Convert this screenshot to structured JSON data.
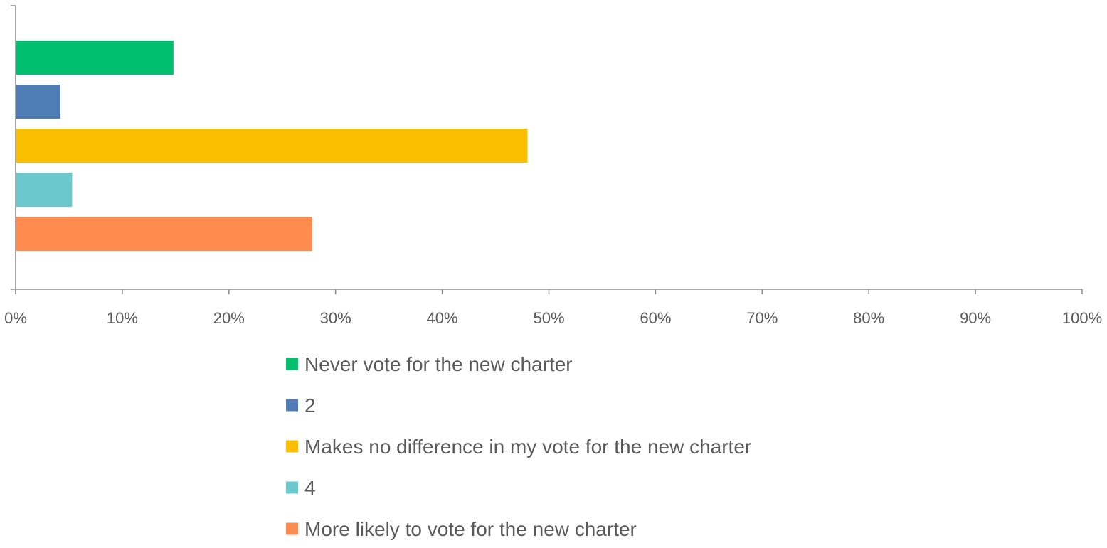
{
  "chart_data": {
    "type": "bar",
    "orientation": "horizontal",
    "title": "",
    "xlabel": "",
    "ylabel": "",
    "xlim": [
      0,
      100
    ],
    "x_ticks": [
      "0%",
      "10%",
      "20%",
      "30%",
      "40%",
      "50%",
      "60%",
      "70%",
      "80%",
      "90%",
      "100%"
    ],
    "grid": false,
    "legend_position": "bottom",
    "series": [
      {
        "name": "Never vote for the new charter",
        "value": 14.8,
        "color": "#00BF6F"
      },
      {
        "name": "2",
        "value": 4.2,
        "color": "#507CB6"
      },
      {
        "name": "Makes no difference in my vote for the new charter",
        "value": 48.0,
        "color": "#F9BE00"
      },
      {
        "name": "4",
        "value": 5.3,
        "color": "#6BC8CD"
      },
      {
        "name": "More likely to vote for the new charter",
        "value": 27.8,
        "color": "#FF8B4F"
      }
    ]
  }
}
